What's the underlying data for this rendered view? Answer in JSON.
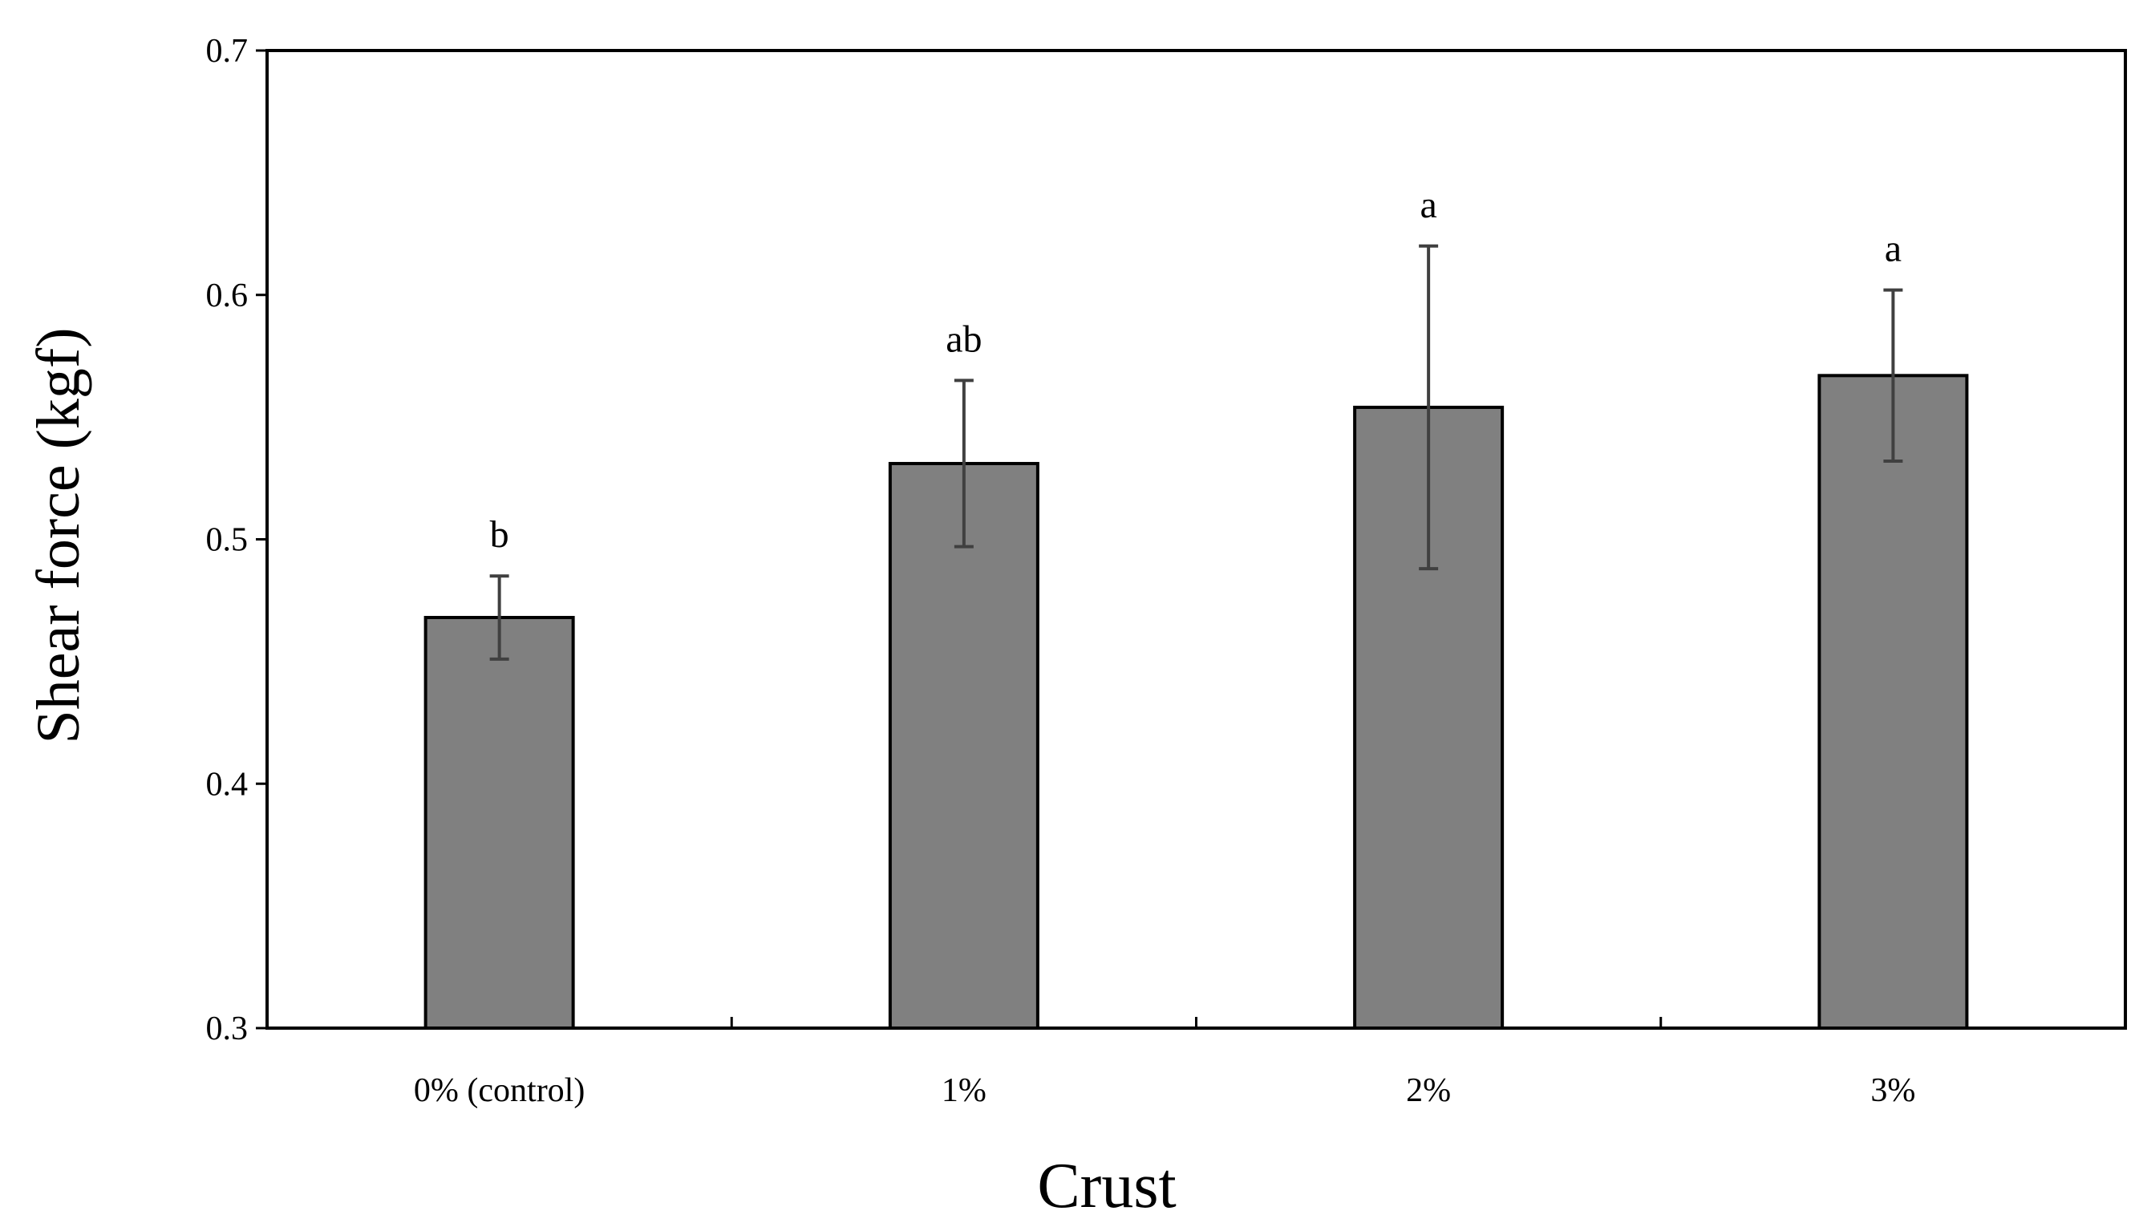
{
  "chart_data": {
    "type": "bar",
    "title": "",
    "xlabel": "Crust",
    "ylabel": "Shear force (kgf)",
    "categories": [
      "0% (control)",
      "1%",
      "2%",
      "3%"
    ],
    "values": [
      0.468,
      0.531,
      0.554,
      0.567
    ],
    "errors": [
      0.017,
      0.034,
      0.066,
      0.035
    ],
    "significance_labels": [
      "b",
      "ab",
      "a",
      "a"
    ],
    "ylim": [
      0.3,
      0.7
    ],
    "yticks": [
      0.3,
      0.4,
      0.5,
      0.6,
      0.7
    ],
    "ytick_labels": [
      "0.3",
      "0.4",
      "0.5",
      "0.6",
      "0.7"
    ],
    "grid": false,
    "legend": "none",
    "bar_color": "#808080",
    "error_bar_color": "#404040"
  }
}
